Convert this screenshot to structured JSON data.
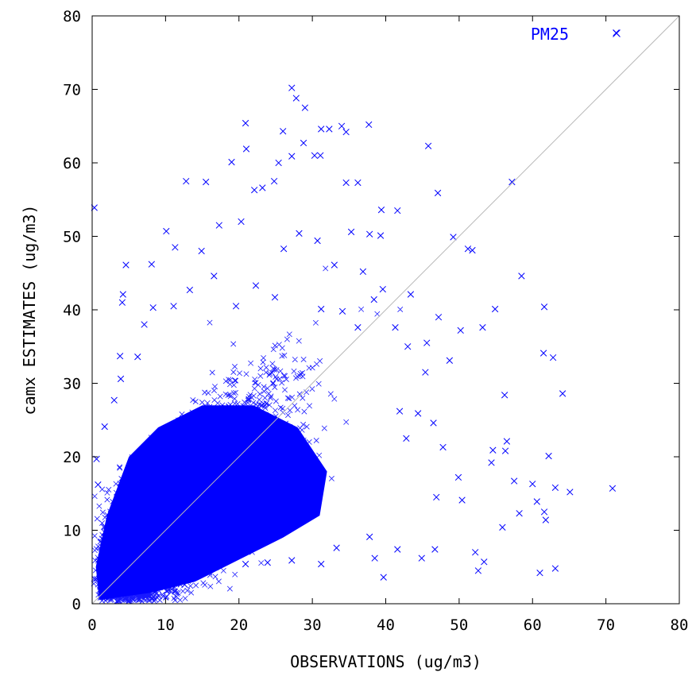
{
  "chart_data": {
    "type": "scatter",
    "title": "",
    "xlabel": "OBSERVATIONS (ug/m3)",
    "ylabel": "camx ESTIMATES (ug/m3)",
    "xlim": [
      0,
      80
    ],
    "ylim": [
      0,
      80
    ],
    "x_ticks": [
      "0",
      "10",
      "20",
      "30",
      "40",
      "50",
      "60",
      "70",
      "80"
    ],
    "y_ticks": [
      "0",
      "10",
      "20",
      "30",
      "40",
      "50",
      "60",
      "70",
      "80"
    ],
    "grid": false,
    "legend_position": "top-right",
    "reference_line": "1:1",
    "series": [
      {
        "name": "PM25",
        "color": "#0000ff",
        "marker": "x",
        "points": [
          [
            71.4,
            77.7
          ],
          [
            0.3,
            53.9
          ],
          [
            27.2,
            70.2
          ],
          [
            27.8,
            68.8
          ],
          [
            29.0,
            67.5
          ],
          [
            20.9,
            65.4
          ],
          [
            31.2,
            64.6
          ],
          [
            32.3,
            64.6
          ],
          [
            34.0,
            65.0
          ],
          [
            37.7,
            65.2
          ],
          [
            26.0,
            64.3
          ],
          [
            34.6,
            64.2
          ],
          [
            45.8,
            62.3
          ],
          [
            28.8,
            62.7
          ],
          [
            27.2,
            60.9
          ],
          [
            30.3,
            61.0
          ],
          [
            31.1,
            61.0
          ],
          [
            21.0,
            61.9
          ],
          [
            19.0,
            60.1
          ],
          [
            25.4,
            60.0
          ],
          [
            12.8,
            57.5
          ],
          [
            15.5,
            57.4
          ],
          [
            24.8,
            57.5
          ],
          [
            34.6,
            57.3
          ],
          [
            36.2,
            57.3
          ],
          [
            57.2,
            57.4
          ],
          [
            47.1,
            55.9
          ],
          [
            23.2,
            56.6
          ],
          [
            22.1,
            56.3
          ],
          [
            39.4,
            53.6
          ],
          [
            41.6,
            53.5
          ],
          [
            49.2,
            49.9
          ],
          [
            51.2,
            48.3
          ],
          [
            51.8,
            48.1
          ],
          [
            58.5,
            44.6
          ],
          [
            4.6,
            46.1
          ],
          [
            8.1,
            46.2
          ],
          [
            4.2,
            42.1
          ],
          [
            4.1,
            41.0
          ],
          [
            43.4,
            42.1
          ],
          [
            61.6,
            40.4
          ],
          [
            54.9,
            40.1
          ],
          [
            47.2,
            39.0
          ],
          [
            53.2,
            37.6
          ],
          [
            61.5,
            34.1
          ],
          [
            62.8,
            33.5
          ],
          [
            64.1,
            28.6
          ],
          [
            56.2,
            28.4
          ],
          [
            58.2,
            12.3
          ],
          [
            56.5,
            22.1
          ],
          [
            56.3,
            20.8
          ],
          [
            54.6,
            20.9
          ],
          [
            54.4,
            19.2
          ],
          [
            62.2,
            20.1
          ],
          [
            57.5,
            16.7
          ],
          [
            60.0,
            16.3
          ],
          [
            63.1,
            15.8
          ],
          [
            65.1,
            15.2
          ],
          [
            70.9,
            15.7
          ],
          [
            60.6,
            13.9
          ],
          [
            61.6,
            12.5
          ],
          [
            61.8,
            11.4
          ],
          [
            55.9,
            10.4
          ],
          [
            61.0,
            4.2
          ],
          [
            63.1,
            4.8
          ],
          [
            52.6,
            4.5
          ],
          [
            52.2,
            7.0
          ],
          [
            53.4,
            5.7
          ],
          [
            39.7,
            3.6
          ],
          [
            41.9,
            26.2
          ],
          [
            45.4,
            31.5
          ],
          [
            48.7,
            33.1
          ],
          [
            50.2,
            37.2
          ],
          [
            45.6,
            35.5
          ],
          [
            43.0,
            35.0
          ],
          [
            38.4,
            41.4
          ],
          [
            39.6,
            42.8
          ],
          [
            37.8,
            50.3
          ],
          [
            39.3,
            50.1
          ],
          [
            36.9,
            45.2
          ],
          [
            28.2,
            50.4
          ],
          [
            30.7,
            49.4
          ],
          [
            26.1,
            48.3
          ],
          [
            33.0,
            46.1
          ],
          [
            35.3,
            50.6
          ],
          [
            20.3,
            52.0
          ],
          [
            17.3,
            51.5
          ],
          [
            14.9,
            48.0
          ],
          [
            11.3,
            48.5
          ],
          [
            10.1,
            50.7
          ],
          [
            3.8,
            33.7
          ],
          [
            3.9,
            30.6
          ],
          [
            3.0,
            27.7
          ],
          [
            1.7,
            24.1
          ],
          [
            0.6,
            19.7
          ],
          [
            0.8,
            16.2
          ],
          [
            6.2,
            33.6
          ],
          [
            7.1,
            38.0
          ],
          [
            8.3,
            40.3
          ],
          [
            11.1,
            40.5
          ],
          [
            16.6,
            44.6
          ],
          [
            13.3,
            42.7
          ],
          [
            19.6,
            40.5
          ],
          [
            22.3,
            43.3
          ],
          [
            24.9,
            41.7
          ],
          [
            31.2,
            40.1
          ],
          [
            34.1,
            39.8
          ],
          [
            36.2,
            37.6
          ],
          [
            41.3,
            37.6
          ],
          [
            42.8,
            22.5
          ],
          [
            44.4,
            25.9
          ],
          [
            46.5,
            24.6
          ],
          [
            47.8,
            21.3
          ],
          [
            49.9,
            17.2
          ],
          [
            46.9,
            14.5
          ],
          [
            50.4,
            14.1
          ],
          [
            46.7,
            7.4
          ],
          [
            44.9,
            6.2
          ],
          [
            41.6,
            7.4
          ],
          [
            38.5,
            6.2
          ],
          [
            37.8,
            9.1
          ],
          [
            33.3,
            7.6
          ],
          [
            31.2,
            5.4
          ],
          [
            27.2,
            5.9
          ],
          [
            23.9,
            5.6
          ],
          [
            20.9,
            5.4
          ],
          [
            16.5,
            5.2
          ],
          [
            12.6,
            2.6
          ],
          [
            8.2,
            1.9
          ]
        ]
      }
    ],
    "density_cloud_note_free": true
  }
}
